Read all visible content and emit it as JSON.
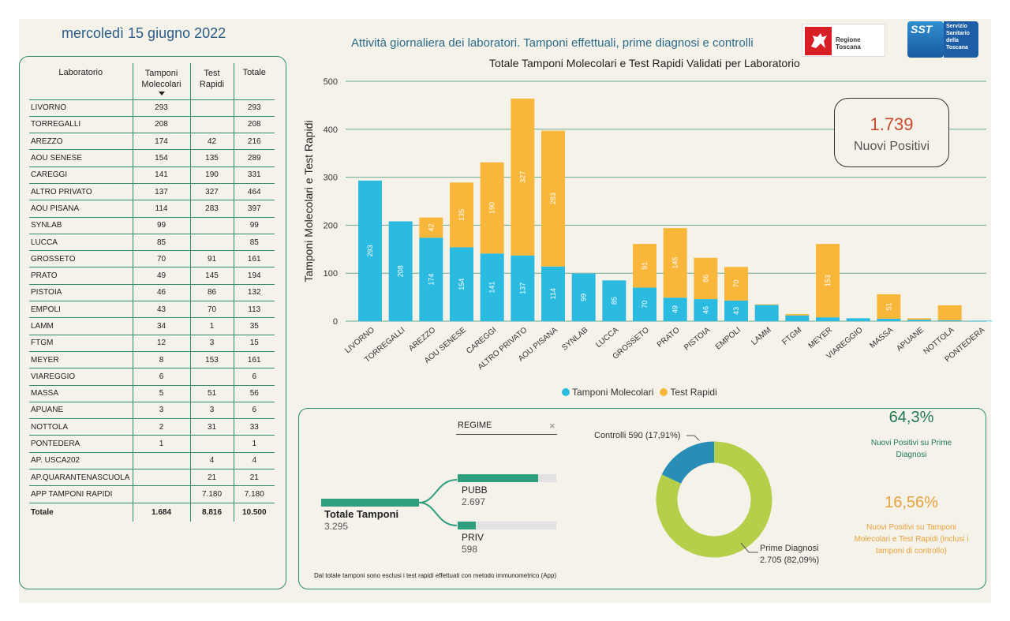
{
  "header": {
    "date": "mercoledì 15 giugno 2022",
    "title": "Attività giornaliera dei laboratori. Tamponi effettuali, prime diagnosi e controlli",
    "logo_rt": "Regione Toscana",
    "logo_sst_badge": "SST",
    "logo_sst_text": [
      "Servizio",
      "Sanitario",
      "della",
      "Toscana"
    ]
  },
  "table": {
    "headers": {
      "lab": "Laboratorio",
      "mol": "Tamponi Molecolari",
      "rapid": "Test Rapidi",
      "total": "Totale"
    },
    "rows": [
      {
        "lab": "LIVORNO",
        "mol": "293",
        "rapid": "",
        "total": "293"
      },
      {
        "lab": "TORREGALLI",
        "mol": "208",
        "rapid": "",
        "total": "208"
      },
      {
        "lab": "AREZZO",
        "mol": "174",
        "rapid": "42",
        "total": "216"
      },
      {
        "lab": "AOU SENESE",
        "mol": "154",
        "rapid": "135",
        "total": "289"
      },
      {
        "lab": "CAREGGI",
        "mol": "141",
        "rapid": "190",
        "total": "331"
      },
      {
        "lab": "ALTRO PRIVATO",
        "mol": "137",
        "rapid": "327",
        "total": "464"
      },
      {
        "lab": "AOU PISANA",
        "mol": "114",
        "rapid": "283",
        "total": "397"
      },
      {
        "lab": "SYNLAB",
        "mol": "99",
        "rapid": "",
        "total": "99"
      },
      {
        "lab": "LUCCA",
        "mol": "85",
        "rapid": "",
        "total": "85"
      },
      {
        "lab": "GROSSETO",
        "mol": "70",
        "rapid": "91",
        "total": "161"
      },
      {
        "lab": "PRATO",
        "mol": "49",
        "rapid": "145",
        "total": "194"
      },
      {
        "lab": "PISTOIA",
        "mol": "46",
        "rapid": "86",
        "total": "132"
      },
      {
        "lab": "EMPOLI",
        "mol": "43",
        "rapid": "70",
        "total": "113"
      },
      {
        "lab": "LAMM",
        "mol": "34",
        "rapid": "1",
        "total": "35"
      },
      {
        "lab": "FTGM",
        "mol": "12",
        "rapid": "3",
        "total": "15"
      },
      {
        "lab": "MEYER",
        "mol": "8",
        "rapid": "153",
        "total": "161"
      },
      {
        "lab": "VIAREGGIO",
        "mol": "6",
        "rapid": "",
        "total": "6"
      },
      {
        "lab": "MASSA",
        "mol": "5",
        "rapid": "51",
        "total": "56"
      },
      {
        "lab": "APUANE",
        "mol": "3",
        "rapid": "3",
        "total": "6"
      },
      {
        "lab": "NOTTOLA",
        "mol": "2",
        "rapid": "31",
        "total": "33"
      },
      {
        "lab": "PONTEDERA",
        "mol": "1",
        "rapid": "",
        "total": "1"
      },
      {
        "lab": "AP. USCA202",
        "mol": "",
        "rapid": "4",
        "total": "4"
      },
      {
        "lab": "AP.QUARANTENASCUOLA",
        "mol": "",
        "rapid": "21",
        "total": "21"
      },
      {
        "lab": "APP TAMPONI RAPIDI",
        "mol": "",
        "rapid": "7.180",
        "total": "7.180"
      }
    ],
    "total_row": {
      "lab": "Totale",
      "mol": "1.684",
      "rapid": "8.816",
      "total": "10.500"
    }
  },
  "chart_data": {
    "type": "bar",
    "stacked": true,
    "title": "Totale Tamponi Molecolari e Test Rapidi Validati per Laboratorio",
    "ylabel": "Tamponi Molecolari e Test Rapidi",
    "xlabel": "",
    "ylim": [
      0,
      500
    ],
    "yticks": [
      0,
      100,
      200,
      300,
      400,
      500
    ],
    "grid": true,
    "legend_position": "bottom",
    "categories": [
      "LIVORNO",
      "TORREGALLI",
      "AREZZO",
      "AOU SENESE",
      "CAREGGI",
      "ALTRO PRIVATO",
      "AOU PISANA",
      "SYNLAB",
      "LUCCA",
      "GROSSETO",
      "PRATO",
      "PISTOIA",
      "EMPOLI",
      "LAMM",
      "FTGM",
      "MEYER",
      "VIAREGGIO",
      "MASSA",
      "APUANE",
      "NOTTOLA",
      "PONTEDERA"
    ],
    "series": [
      {
        "name": "Tamponi Molecolari",
        "color": "#2bbbe0",
        "values": [
          293,
          208,
          174,
          154,
          141,
          137,
          114,
          99,
          85,
          70,
          49,
          46,
          43,
          34,
          12,
          8,
          6,
          5,
          3,
          2,
          1
        ]
      },
      {
        "name": "Test Rapidi",
        "color": "#f8b73a",
        "values": [
          0,
          0,
          42,
          135,
          190,
          327,
          283,
          0,
          0,
          91,
          145,
          86,
          70,
          1,
          3,
          153,
          0,
          51,
          3,
          31,
          0
        ]
      }
    ]
  },
  "kpi_card": {
    "value": "1.739",
    "label": "Nuovi Positivi"
  },
  "slicer": {
    "label": "REGIME",
    "clear_icon": "×"
  },
  "tree": {
    "root_label": "Totale Tamponi",
    "root_value": "3.295",
    "nodes": [
      {
        "label": "PUBB",
        "value": "2.697",
        "fraction": 0.819
      },
      {
        "label": "PRIV",
        "value": "598",
        "fraction": 0.181
      }
    ]
  },
  "donut": {
    "slices": [
      {
        "name": "Prime Diagnosi",
        "label": "Prime Diagnosi",
        "value_label": "2.705 (82,09%)",
        "value": 2705,
        "pct": 82.09,
        "color": "#b5cf4b"
      },
      {
        "name": "Controlli",
        "label": "Controlli 590 (17,91%)",
        "value": 590,
        "pct": 17.91,
        "color": "#2a8db7"
      }
    ]
  },
  "kpi_prime": {
    "value": "64,3%",
    "caption": "Nuovi Positivi su Prime Diagnosi",
    "color": "#1f7a4e"
  },
  "kpi_total": {
    "value": "16,56%",
    "caption": "Nuovi Positivi su Tamponi Molecolari e Test Rapidi (inclusi i tamponi di controllo)",
    "color": "#e8a23c"
  },
  "footnote": "Dal totale tamponi sono esclusi i test rapidi effettuati con metodo immunometrico (App)"
}
